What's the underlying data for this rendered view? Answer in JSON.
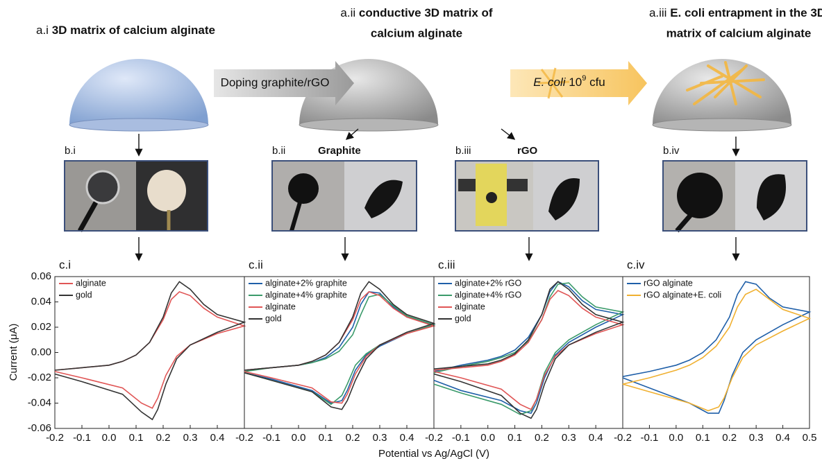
{
  "panel_a": [
    {
      "label": "a.i",
      "title_lines": [
        "3D matrix of calcium alginate"
      ]
    },
    {
      "label": "a.ii",
      "title_lines": [
        "conductive 3D matrix of",
        "calcium alginate"
      ]
    },
    {
      "label": "a.iii",
      "title_lines": [
        "E. coli entrapment in the 3D",
        "matrix of calcium alginate"
      ]
    }
  ],
  "arrows": {
    "doping": "Doping graphite/rGO",
    "ecoli": {
      "species": "E. coli",
      "count": "10",
      "exponent": "9",
      "unit": "cfu"
    }
  },
  "panel_b": [
    {
      "label": "b.i"
    },
    {
      "label": "b.ii",
      "title": "Graphite"
    },
    {
      "label": "b.iii",
      "title": "rGO"
    },
    {
      "label": "b.iv"
    }
  ],
  "shared_xlabel": "Potential vs Ag/AgCl (V)",
  "chart_data": [
    {
      "type": "line",
      "title": "c.i",
      "ylabel": "Current (μA)",
      "x": [
        -0.2,
        -0.1,
        0,
        0.05,
        0.1,
        0.15,
        0.2,
        0.23,
        0.26,
        0.3,
        0.35,
        0.4,
        0.5,
        0.4,
        0.3,
        0.25,
        0.21,
        0.18,
        0.16,
        0.12,
        0.05,
        -0.1,
        -0.2
      ],
      "xlim": [
        -0.2,
        0.5
      ],
      "ylim": [
        -0.06,
        0.06
      ],
      "xticks": [
        -0.2,
        -0.1,
        {
          "value": 0,
          "label": "0.0"
        },
        0.1,
        0.2,
        0.3,
        0.4
      ],
      "yticks": [
        -0.06,
        -0.04,
        -0.02,
        {
          "value": 0,
          "label": "0.00"
        },
        0.02,
        0.04,
        0.06
      ],
      "series": [
        {
          "name": "alginate",
          "color": "#e05555",
          "values": [
            -0.014,
            -0.012,
            -0.01,
            -0.007,
            -0.002,
            0.008,
            0.026,
            0.042,
            0.048,
            0.045,
            0.035,
            0.028,
            0.021,
            0.015,
            0.006,
            -0.003,
            -0.018,
            -0.036,
            -0.044,
            -0.04,
            -0.028,
            -0.02,
            -0.015
          ]
        },
        {
          "name": "gold",
          "color": "#333333",
          "values": [
            -0.014,
            -0.012,
            -0.01,
            -0.007,
            -0.002,
            0.008,
            0.028,
            0.047,
            0.056,
            0.05,
            0.038,
            0.03,
            0.024,
            0.016,
            0.006,
            -0.005,
            -0.025,
            -0.045,
            -0.053,
            -0.047,
            -0.033,
            -0.023,
            -0.017
          ]
        }
      ]
    },
    {
      "type": "line",
      "title": "c.ii",
      "x": [
        -0.2,
        -0.1,
        0,
        0.05,
        0.1,
        0.15,
        0.2,
        0.23,
        0.26,
        0.3,
        0.35,
        0.4,
        0.5,
        0.4,
        0.3,
        0.25,
        0.21,
        0.18,
        0.16,
        0.12,
        0.05,
        -0.1,
        -0.2
      ],
      "xlim": [
        -0.2,
        0.5
      ],
      "ylim": [
        -0.06,
        0.06
      ],
      "xticks": [
        -0.2,
        -0.1,
        {
          "value": 0,
          "label": "0.0"
        },
        0.1,
        0.2,
        0.3,
        0.4
      ],
      "series": [
        {
          "name": "alginate+2% graphite",
          "color": "#1f5fa8",
          "values": [
            -0.014,
            -0.012,
            -0.01,
            -0.008,
            -0.004,
            0.004,
            0.02,
            0.038,
            0.048,
            0.047,
            0.036,
            0.028,
            0.022,
            0.015,
            0.005,
            -0.002,
            -0.014,
            -0.03,
            -0.038,
            -0.04,
            -0.03,
            -0.021,
            -0.016
          ]
        },
        {
          "name": "alginate+4% graphite",
          "color": "#3a9a6a",
          "values": [
            -0.015,
            -0.012,
            -0.01,
            -0.008,
            -0.005,
            0.001,
            0.014,
            0.03,
            0.044,
            0.046,
            0.037,
            0.029,
            0.022,
            0.015,
            0.006,
            -0.001,
            -0.01,
            -0.025,
            -0.034,
            -0.041,
            -0.031,
            -0.022,
            -0.016
          ]
        },
        {
          "name": "alginate",
          "color": "#e05555",
          "values": [
            -0.014,
            -0.012,
            -0.01,
            -0.007,
            -0.002,
            0.008,
            0.026,
            0.042,
            0.048,
            0.045,
            0.035,
            0.028,
            0.021,
            0.015,
            0.006,
            -0.003,
            -0.017,
            -0.033,
            -0.04,
            -0.039,
            -0.028,
            -0.02,
            -0.015
          ]
        },
        {
          "name": "gold",
          "color": "#333333",
          "values": [
            -0.014,
            -0.012,
            -0.01,
            -0.007,
            -0.002,
            0.008,
            0.028,
            0.047,
            0.056,
            0.05,
            0.038,
            0.03,
            0.023,
            0.016,
            0.006,
            -0.005,
            -0.022,
            -0.038,
            -0.045,
            -0.043,
            -0.031,
            -0.022,
            -0.016
          ]
        }
      ]
    },
    {
      "type": "line",
      "title": "c.iii",
      "x": [
        -0.2,
        -0.1,
        0,
        0.05,
        0.1,
        0.15,
        0.2,
        0.23,
        0.26,
        0.3,
        0.35,
        0.4,
        0.5,
        0.4,
        0.3,
        0.25,
        0.21,
        0.18,
        0.16,
        0.12,
        0.05,
        -0.1,
        -0.2
      ],
      "xlim": [
        -0.2,
        0.5
      ],
      "ylim": [
        -0.06,
        0.06
      ],
      "xticks": [
        -0.2,
        -0.1,
        {
          "value": 0,
          "label": "0.0"
        },
        0.1,
        0.2,
        0.3,
        0.4
      ],
      "series": [
        {
          "name": "alginate+2% rGO",
          "color": "#1f5fa8",
          "values": [
            -0.015,
            -0.01,
            -0.006,
            -0.003,
            0.002,
            0.012,
            0.03,
            0.048,
            0.056,
            0.052,
            0.041,
            0.034,
            0.03,
            0.02,
            0.008,
            -0.002,
            -0.02,
            -0.04,
            -0.048,
            -0.046,
            -0.038,
            -0.03,
            -0.022
          ]
        },
        {
          "name": "alginate+4% rGO",
          "color": "#3a9a6a",
          "values": [
            -0.016,
            -0.011,
            -0.007,
            -0.004,
            0.0,
            0.009,
            0.026,
            0.044,
            0.054,
            0.055,
            0.044,
            0.036,
            0.032,
            0.022,
            0.01,
            0.0,
            -0.016,
            -0.037,
            -0.046,
            -0.049,
            -0.041,
            -0.032,
            -0.025
          ]
        },
        {
          "name": "alginate",
          "color": "#e05555",
          "values": [
            -0.014,
            -0.012,
            -0.01,
            -0.007,
            -0.002,
            0.008,
            0.026,
            0.042,
            0.049,
            0.045,
            0.035,
            0.028,
            0.022,
            0.015,
            0.006,
            -0.003,
            -0.018,
            -0.037,
            -0.045,
            -0.041,
            -0.029,
            -0.02,
            -0.015
          ]
        },
        {
          "name": "gold",
          "color": "#333333",
          "values": [
            -0.013,
            -0.011,
            -0.009,
            -0.006,
            -0.001,
            0.01,
            0.03,
            0.05,
            0.056,
            0.05,
            0.038,
            0.03,
            0.024,
            0.016,
            0.006,
            -0.005,
            -0.025,
            -0.045,
            -0.052,
            -0.048,
            -0.034,
            -0.023,
            -0.017
          ]
        }
      ]
    },
    {
      "type": "line",
      "title": "c.iv",
      "x": [
        -0.2,
        -0.1,
        0,
        0.05,
        0.1,
        0.15,
        0.2,
        0.23,
        0.26,
        0.3,
        0.35,
        0.4,
        0.5,
        0.4,
        0.3,
        0.25,
        0.21,
        0.18,
        0.16,
        0.12,
        0.05,
        -0.1,
        -0.2
      ],
      "xlim": [
        -0.2,
        0.5
      ],
      "ylim": [
        -0.06,
        0.06
      ],
      "xticks": [
        -0.2,
        -0.1,
        {
          "value": 0,
          "label": "0.0"
        },
        0.1,
        0.2,
        0.3,
        0.4,
        0.5
      ],
      "series": [
        {
          "name": "rGO alginate",
          "color": "#1f5fa8",
          "values": [
            -0.019,
            -0.015,
            -0.01,
            -0.006,
            0.0,
            0.01,
            0.028,
            0.046,
            0.056,
            0.054,
            0.043,
            0.036,
            0.032,
            0.022,
            0.01,
            0.0,
            -0.018,
            -0.038,
            -0.048,
            -0.048,
            -0.04,
            -0.028,
            -0.02
          ]
        },
        {
          "name": "rGO alginate+E. coli",
          "color": "#f0b030",
          "values": [
            -0.025,
            -0.02,
            -0.014,
            -0.01,
            -0.004,
            0.005,
            0.02,
            0.036,
            0.046,
            0.05,
            0.042,
            0.034,
            0.027,
            0.017,
            0.006,
            -0.004,
            -0.02,
            -0.036,
            -0.043,
            -0.046,
            -0.04,
            -0.031,
            -0.025
          ]
        }
      ]
    }
  ]
}
